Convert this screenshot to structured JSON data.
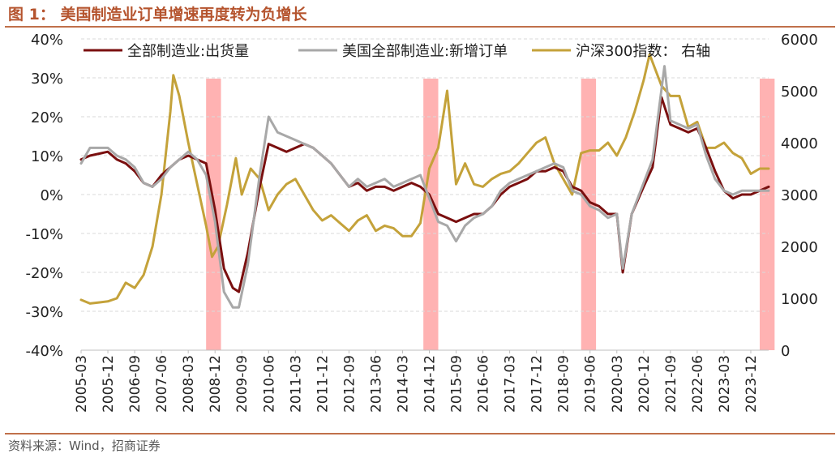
{
  "figure": {
    "title": "图 1：  美国制造业订单增速再度转为负增长",
    "source": "资料来源：Wind，招商证券"
  },
  "chart_data": {
    "type": "line",
    "left_axis": {
      "min": -40,
      "max": 40,
      "step": 10,
      "unit": "%"
    },
    "right_axis": {
      "min": 0,
      "max": 6000,
      "step": 1000,
      "label": "右轴"
    },
    "x_range": [
      "2005-03",
      "2024-06"
    ],
    "x_ticks": [
      "2005-03",
      "2005-12",
      "2006-09",
      "2007-06",
      "2008-03",
      "2008-12",
      "2009-09",
      "2010-06",
      "2011-03",
      "2011-12",
      "2012-09",
      "2013-06",
      "2014-03",
      "2014-12",
      "2015-09",
      "2016-06",
      "2017-03",
      "2017-12",
      "2018-09",
      "2019-06",
      "2020-03",
      "2020-12",
      "2021-09",
      "2022-06",
      "2023-03",
      "2023-12"
    ],
    "grid": "horizontal dashed",
    "legend_position": "top",
    "recession_bars": [
      {
        "start": "2008-09",
        "end": "2009-02"
      },
      {
        "start": "2014-10",
        "end": "2015-03"
      },
      {
        "start": "2019-03",
        "end": "2019-08"
      },
      {
        "start": "2024-03",
        "end": "2024-08"
      }
    ],
    "bar_color": "#ffb2b2",
    "series": [
      {
        "name": "全部制造业:出货量",
        "axis": "left",
        "color": "#7a0f0f",
        "points": [
          [
            "2005-03",
            9
          ],
          [
            "2005-06",
            10
          ],
          [
            "2005-12",
            11
          ],
          [
            "2006-03",
            9
          ],
          [
            "2006-06",
            8
          ],
          [
            "2006-09",
            6
          ],
          [
            "2006-12",
            3
          ],
          [
            "2007-03",
            2
          ],
          [
            "2007-06",
            5
          ],
          [
            "2007-09",
            7
          ],
          [
            "2007-12",
            9
          ],
          [
            "2008-03",
            10
          ],
          [
            "2008-06",
            9
          ],
          [
            "2008-09",
            8
          ],
          [
            "2008-12",
            -4
          ],
          [
            "2009-03",
            -19
          ],
          [
            "2009-06",
            -24
          ],
          [
            "2009-08",
            -25
          ],
          [
            "2009-11",
            -15
          ],
          [
            "2010-03",
            2
          ],
          [
            "2010-06",
            13
          ],
          [
            "2010-09",
            12
          ],
          [
            "2010-12",
            11
          ],
          [
            "2011-03",
            12
          ],
          [
            "2011-06",
            13
          ],
          [
            "2011-09",
            12
          ],
          [
            "2011-12",
            10
          ],
          [
            "2012-03",
            8
          ],
          [
            "2012-06",
            5
          ],
          [
            "2012-09",
            2
          ],
          [
            "2012-12",
            3
          ],
          [
            "2013-03",
            1
          ],
          [
            "2013-06",
            2
          ],
          [
            "2013-09",
            2
          ],
          [
            "2013-12",
            1
          ],
          [
            "2014-03",
            2
          ],
          [
            "2014-06",
            3
          ],
          [
            "2014-09",
            2
          ],
          [
            "2014-12",
            0
          ],
          [
            "2015-03",
            -5
          ],
          [
            "2015-06",
            -6
          ],
          [
            "2015-09",
            -7
          ],
          [
            "2015-12",
            -6
          ],
          [
            "2016-03",
            -5
          ],
          [
            "2016-06",
            -5
          ],
          [
            "2016-09",
            -3
          ],
          [
            "2016-12",
            0
          ],
          [
            "2017-03",
            2
          ],
          [
            "2017-06",
            3
          ],
          [
            "2017-09",
            4
          ],
          [
            "2017-12",
            6
          ],
          [
            "2018-03",
            6
          ],
          [
            "2018-06",
            7
          ],
          [
            "2018-09",
            6
          ],
          [
            "2018-12",
            2
          ],
          [
            "2019-03",
            1
          ],
          [
            "2019-06",
            -2
          ],
          [
            "2019-09",
            -3
          ],
          [
            "2019-12",
            -5
          ],
          [
            "2020-03",
            -5
          ],
          [
            "2020-05",
            -20
          ],
          [
            "2020-08",
            -5
          ],
          [
            "2020-12",
            2
          ],
          [
            "2021-03",
            7
          ],
          [
            "2021-06",
            25
          ],
          [
            "2021-09",
            18
          ],
          [
            "2021-12",
            17
          ],
          [
            "2022-03",
            16
          ],
          [
            "2022-06",
            17
          ],
          [
            "2022-09",
            12
          ],
          [
            "2022-12",
            6
          ],
          [
            "2023-03",
            1
          ],
          [
            "2023-06",
            -1
          ],
          [
            "2023-09",
            0
          ],
          [
            "2023-12",
            0
          ],
          [
            "2024-03",
            1
          ],
          [
            "2024-06",
            2
          ]
        ]
      },
      {
        "name": "美国全部制造业:新增订单",
        "axis": "left",
        "color": "#a8a8a8",
        "points": [
          [
            "2005-03",
            8
          ],
          [
            "2005-06",
            12
          ],
          [
            "2005-12",
            12
          ],
          [
            "2006-03",
            10
          ],
          [
            "2006-06",
            9
          ],
          [
            "2006-09",
            7
          ],
          [
            "2006-12",
            3
          ],
          [
            "2007-03",
            2
          ],
          [
            "2007-06",
            4
          ],
          [
            "2007-09",
            7
          ],
          [
            "2007-12",
            9
          ],
          [
            "2008-03",
            11
          ],
          [
            "2008-06",
            9
          ],
          [
            "2008-09",
            5
          ],
          [
            "2008-12",
            -7
          ],
          [
            "2009-03",
            -25
          ],
          [
            "2009-06",
            -29
          ],
          [
            "2009-08",
            -29
          ],
          [
            "2009-11",
            -18
          ],
          [
            "2010-03",
            5
          ],
          [
            "2010-06",
            20
          ],
          [
            "2010-09",
            16
          ],
          [
            "2010-12",
            15
          ],
          [
            "2011-03",
            14
          ],
          [
            "2011-06",
            13
          ],
          [
            "2011-09",
            12
          ],
          [
            "2011-12",
            10
          ],
          [
            "2012-03",
            8
          ],
          [
            "2012-06",
            5
          ],
          [
            "2012-09",
            2
          ],
          [
            "2012-12",
            4
          ],
          [
            "2013-03",
            2
          ],
          [
            "2013-06",
            3
          ],
          [
            "2013-09",
            4
          ],
          [
            "2013-12",
            2
          ],
          [
            "2014-03",
            3
          ],
          [
            "2014-06",
            4
          ],
          [
            "2014-09",
            5
          ],
          [
            "2014-12",
            -1
          ],
          [
            "2015-03",
            -7
          ],
          [
            "2015-06",
            -8
          ],
          [
            "2015-09",
            -12
          ],
          [
            "2015-12",
            -8
          ],
          [
            "2016-03",
            -6
          ],
          [
            "2016-06",
            -5
          ],
          [
            "2016-09",
            -3
          ],
          [
            "2016-12",
            1
          ],
          [
            "2017-03",
            3
          ],
          [
            "2017-06",
            4
          ],
          [
            "2017-09",
            5
          ],
          [
            "2017-12",
            6
          ],
          [
            "2018-03",
            7
          ],
          [
            "2018-06",
            8
          ],
          [
            "2018-09",
            7
          ],
          [
            "2018-12",
            1
          ],
          [
            "2019-03",
            0
          ],
          [
            "2019-06",
            -3
          ],
          [
            "2019-09",
            -4
          ],
          [
            "2019-12",
            -6
          ],
          [
            "2020-03",
            -5
          ],
          [
            "2020-05",
            -19
          ],
          [
            "2020-08",
            -5
          ],
          [
            "2020-12",
            3
          ],
          [
            "2021-03",
            9
          ],
          [
            "2021-07",
            33
          ],
          [
            "2021-09",
            19
          ],
          [
            "2021-12",
            18
          ],
          [
            "2022-03",
            17
          ],
          [
            "2022-06",
            18
          ],
          [
            "2022-09",
            10
          ],
          [
            "2022-12",
            4
          ],
          [
            "2023-03",
            1
          ],
          [
            "2023-06",
            0
          ],
          [
            "2023-09",
            1
          ],
          [
            "2023-12",
            1
          ],
          [
            "2024-03",
            1
          ],
          [
            "2024-06",
            1
          ]
        ]
      },
      {
        "name": "沪深300指数：  右轴",
        "axis": "right",
        "color": "#c4a23a",
        "points": [
          [
            "2005-03",
            970
          ],
          [
            "2005-06",
            900
          ],
          [
            "2005-09",
            920
          ],
          [
            "2005-12",
            940
          ],
          [
            "2006-03",
            1000
          ],
          [
            "2006-06",
            1300
          ],
          [
            "2006-09",
            1200
          ],
          [
            "2006-12",
            1450
          ],
          [
            "2007-03",
            2000
          ],
          [
            "2007-06",
            3000
          ],
          [
            "2007-09",
            4600
          ],
          [
            "2007-10",
            5300
          ],
          [
            "2007-12",
            4900
          ],
          [
            "2008-03",
            4000
          ],
          [
            "2008-06",
            3200
          ],
          [
            "2008-09",
            2400
          ],
          [
            "2008-11",
            1800
          ],
          [
            "2009-01",
            2000
          ],
          [
            "2009-04",
            2800
          ],
          [
            "2009-07",
            3700
          ],
          [
            "2009-09",
            3000
          ],
          [
            "2009-12",
            3500
          ],
          [
            "2010-03",
            3300
          ],
          [
            "2010-06",
            2700
          ],
          [
            "2010-09",
            3000
          ],
          [
            "2010-12",
            3200
          ],
          [
            "2011-03",
            3300
          ],
          [
            "2011-06",
            3000
          ],
          [
            "2011-09",
            2700
          ],
          [
            "2011-12",
            2500
          ],
          [
            "2012-03",
            2600
          ],
          [
            "2012-06",
            2450
          ],
          [
            "2012-09",
            2300
          ],
          [
            "2012-12",
            2500
          ],
          [
            "2013-03",
            2600
          ],
          [
            "2013-06",
            2300
          ],
          [
            "2013-09",
            2400
          ],
          [
            "2013-12",
            2350
          ],
          [
            "2014-03",
            2200
          ],
          [
            "2014-06",
            2200
          ],
          [
            "2014-09",
            2450
          ],
          [
            "2014-12",
            3500
          ],
          [
            "2015-03",
            3900
          ],
          [
            "2015-06",
            5000
          ],
          [
            "2015-09",
            3200
          ],
          [
            "2015-12",
            3600
          ],
          [
            "2016-03",
            3200
          ],
          [
            "2016-06",
            3150
          ],
          [
            "2016-09",
            3300
          ],
          [
            "2016-12",
            3400
          ],
          [
            "2017-03",
            3450
          ],
          [
            "2017-06",
            3600
          ],
          [
            "2017-09",
            3800
          ],
          [
            "2017-12",
            4000
          ],
          [
            "2018-03",
            4100
          ],
          [
            "2018-06",
            3600
          ],
          [
            "2018-09",
            3300
          ],
          [
            "2018-12",
            3000
          ],
          [
            "2019-03",
            3800
          ],
          [
            "2019-06",
            3850
          ],
          [
            "2019-09",
            3850
          ],
          [
            "2019-12",
            4000
          ],
          [
            "2020-03",
            3750
          ],
          [
            "2020-06",
            4100
          ],
          [
            "2020-09",
            4600
          ],
          [
            "2020-12",
            5200
          ],
          [
            "2021-02",
            5700
          ],
          [
            "2021-06",
            5100
          ],
          [
            "2021-09",
            4900
          ],
          [
            "2021-12",
            4900
          ],
          [
            "2022-03",
            4300
          ],
          [
            "2022-06",
            4400
          ],
          [
            "2022-09",
            3900
          ],
          [
            "2022-12",
            3900
          ],
          [
            "2023-03",
            4000
          ],
          [
            "2023-06",
            3800
          ],
          [
            "2023-09",
            3700
          ],
          [
            "2023-12",
            3400
          ],
          [
            "2024-03",
            3500
          ],
          [
            "2024-06",
            3500
          ]
        ]
      }
    ]
  }
}
